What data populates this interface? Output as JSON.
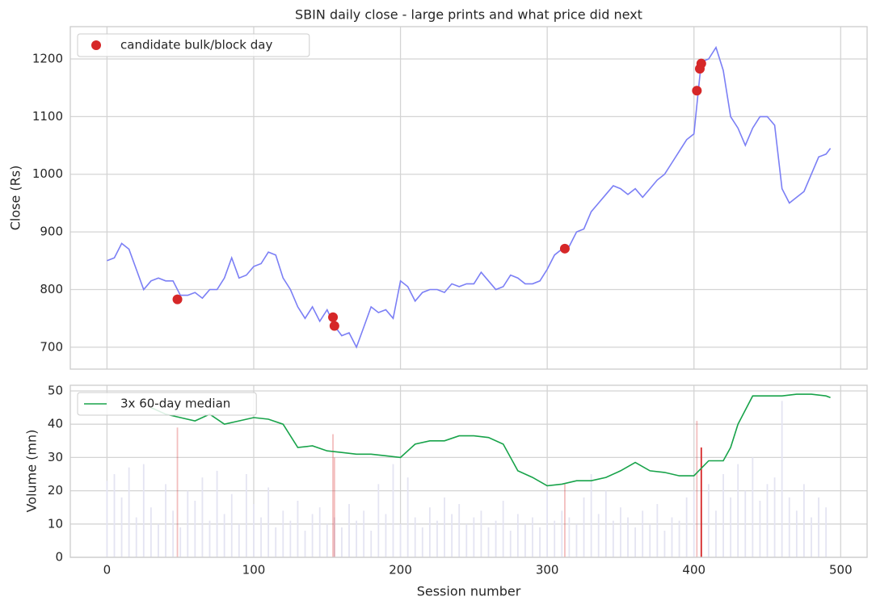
{
  "chart_data": [
    {
      "type": "line",
      "title": "SBIN daily close - large prints and what price did next",
      "ylabel": "Close (Rs)",
      "xlim": [
        -25,
        518
      ],
      "ylim": [
        662,
        1256
      ],
      "yticks": [
        700,
        800,
        900,
        1000,
        1100,
        1200
      ],
      "grid": true,
      "legend": "upper left",
      "series": [
        {
          "color": "#7b7ff5",
          "x": [
            0,
            5,
            10,
            15,
            20,
            25,
            30,
            35,
            40,
            45,
            50,
            55,
            60,
            65,
            70,
            75,
            80,
            85,
            90,
            95,
            100,
            105,
            110,
            115,
            120,
            125,
            130,
            135,
            140,
            145,
            150,
            155,
            160,
            165,
            170,
            175,
            180,
            185,
            190,
            195,
            200,
            205,
            210,
            215,
            220,
            225,
            230,
            235,
            240,
            245,
            250,
            255,
            260,
            265,
            270,
            275,
            280,
            285,
            290,
            295,
            300,
            305,
            310,
            315,
            320,
            325,
            330,
            335,
            340,
            345,
            350,
            355,
            360,
            365,
            370,
            375,
            380,
            385,
            390,
            395,
            400,
            405,
            410,
            415,
            420,
            425,
            430,
            435,
            440,
            445,
            450,
            455,
            460,
            465,
            470,
            475,
            480,
            485,
            490,
            493
          ],
          "values": [
            850,
            855,
            880,
            870,
            835,
            800,
            815,
            820,
            815,
            815,
            790,
            790,
            795,
            785,
            800,
            800,
            820,
            855,
            820,
            825,
            840,
            845,
            865,
            860,
            820,
            800,
            770,
            750,
            770,
            745,
            765,
            737,
            720,
            725,
            700,
            735,
            770,
            760,
            765,
            750,
            815,
            805,
            780,
            795,
            800,
            800,
            795,
            810,
            805,
            810,
            810,
            830,
            815,
            800,
            805,
            825,
            820,
            810,
            810,
            815,
            835,
            860,
            870,
            875,
            900,
            905,
            935,
            950,
            965,
            980,
            975,
            965,
            975,
            960,
            975,
            990,
            1000,
            1020,
            1040,
            1060,
            1070,
            1195,
            1200,
            1220,
            1180,
            1100,
            1080,
            1050,
            1080,
            1100,
            1100,
            1085,
            975,
            950,
            960,
            970,
            1000,
            1030,
            1035,
            1045
          ]
        },
        {
          "name": "candidate bulk/block day",
          "kind": "scatter",
          "color": "#d62728",
          "x": [
            48,
            154,
            155,
            312,
            402,
            404,
            405
          ],
          "values": [
            783,
            752,
            737,
            871,
            1145,
            1183,
            1192
          ]
        }
      ]
    },
    {
      "type": "bar",
      "xlabel": "Session number",
      "ylabel": "Volume (mn)",
      "xlim": [
        -25,
        518
      ],
      "ylim": [
        0,
        51.7
      ],
      "xticks": [
        0,
        100,
        200,
        300,
        400,
        500
      ],
      "yticks": [
        0,
        10,
        20,
        30,
        40,
        50
      ],
      "grid": true,
      "legend": "upper left",
      "series": [
        {
          "color": "#e4e4f2",
          "x": [
            0,
            5,
            10,
            15,
            20,
            25,
            30,
            35,
            40,
            45,
            50,
            55,
            60,
            65,
            70,
            75,
            80,
            85,
            90,
            95,
            100,
            105,
            110,
            115,
            120,
            125,
            130,
            135,
            140,
            145,
            150,
            155,
            160,
            165,
            170,
            175,
            180,
            185,
            190,
            195,
            200,
            205,
            210,
            215,
            220,
            225,
            230,
            235,
            240,
            245,
            250,
            255,
            260,
            265,
            270,
            275,
            280,
            285,
            290,
            295,
            300,
            305,
            310,
            315,
            320,
            325,
            330,
            335,
            340,
            345,
            350,
            355,
            360,
            365,
            370,
            375,
            380,
            385,
            390,
            395,
            400,
            405,
            410,
            415,
            420,
            425,
            430,
            435,
            440,
            445,
            450,
            455,
            460,
            465,
            470,
            475,
            480,
            485,
            490
          ],
          "values": [
            23,
            25,
            18,
            27,
            12,
            28,
            15,
            10,
            22,
            14,
            9,
            20,
            17,
            24,
            11,
            26,
            13,
            19,
            10,
            25,
            16,
            12,
            21,
            9,
            14,
            11,
            17,
            8,
            13,
            15,
            10,
            12,
            9,
            16,
            11,
            14,
            8,
            22,
            13,
            28,
            10,
            24,
            12,
            9,
            15,
            11,
            18,
            13,
            16,
            10,
            12,
            14,
            9,
            11,
            17,
            8,
            13,
            10,
            12,
            9,
            20,
            11,
            14,
            12,
            10,
            18,
            25,
            13,
            20,
            11,
            15,
            12,
            9,
            14,
            10,
            16,
            8,
            12,
            11,
            18,
            20,
            15,
            22,
            14,
            25,
            18,
            28,
            20,
            30,
            17,
            22,
            24,
            47,
            18,
            14,
            22,
            12,
            18,
            15
          ]
        },
        {
          "color": "#d62728",
          "opacity": 0.3,
          "x": [
            48,
            154,
            155,
            312,
            402
          ],
          "values": [
            39,
            37,
            30,
            22,
            41
          ]
        },
        {
          "color": "#d62728",
          "x": [
            405
          ],
          "values": [
            33
          ]
        },
        {
          "name": "3x 60-day median",
          "kind": "line",
          "color": "#18a34a",
          "x": [
            30,
            40,
            50,
            60,
            70,
            80,
            90,
            100,
            110,
            120,
            130,
            140,
            150,
            160,
            170,
            180,
            190,
            200,
            210,
            220,
            230,
            240,
            250,
            260,
            270,
            280,
            290,
            300,
            310,
            320,
            330,
            340,
            350,
            360,
            370,
            380,
            390,
            400,
            410,
            420,
            425,
            430,
            440,
            450,
            460,
            470,
            480,
            490,
            493
          ],
          "values": [
            45,
            43,
            42,
            41,
            43,
            40,
            41,
            42,
            41.5,
            40,
            33,
            33.5,
            32,
            31.5,
            31,
            31,
            30.5,
            30,
            34,
            35,
            35,
            36.5,
            36.5,
            36,
            34,
            26,
            24,
            21.5,
            22,
            23,
            23,
            24,
            26,
            28.5,
            26,
            25.5,
            24.5,
            24.5,
            29,
            29,
            33,
            40,
            48.5,
            48.5,
            48.5,
            49,
            49,
            48.5,
            48
          ]
        }
      ]
    }
  ]
}
